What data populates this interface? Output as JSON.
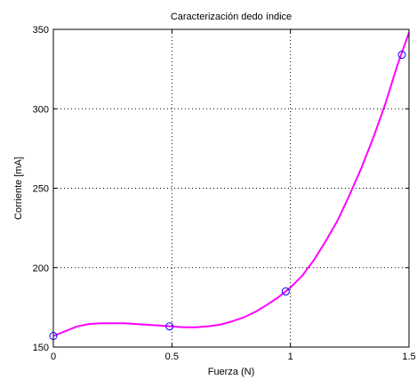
{
  "chart_data": {
    "type": "line",
    "title": "Caracterización dedo índice",
    "xlabel": "Fuerza (N)",
    "ylabel": "Corriente [mA]",
    "xlim": [
      0,
      1.5
    ],
    "ylim": [
      150,
      350
    ],
    "grid": true,
    "x_ticks": [
      "0",
      "0.5",
      "1",
      "1.5"
    ],
    "y_ticks": [
      "150",
      "200",
      "250",
      "300",
      "350"
    ],
    "colors": {
      "curve": "#ff00ff",
      "markers": "#0000ff"
    },
    "series": [
      {
        "style": "markers",
        "marker": "circle",
        "x": [
          0,
          0.49,
          0.98,
          1.47
        ],
        "y": [
          157,
          163,
          185,
          334
        ]
      },
      {
        "style": "line",
        "x": [
          0,
          0.05,
          0.1,
          0.15,
          0.2,
          0.25,
          0.3,
          0.35,
          0.4,
          0.45,
          0.5,
          0.55,
          0.6,
          0.65,
          0.7,
          0.75,
          0.8,
          0.85,
          0.9,
          0.95,
          1.0,
          1.05,
          1.1,
          1.15,
          1.2,
          1.25,
          1.3,
          1.35,
          1.4,
          1.45,
          1.5
        ],
        "y": [
          157,
          160,
          163,
          164.5,
          165,
          165,
          165,
          164.5,
          164,
          163.5,
          163,
          162.5,
          162.5,
          163,
          164,
          166,
          168.5,
          172,
          176.5,
          181.5,
          187.5,
          195,
          205,
          217,
          230,
          246,
          263,
          282,
          303,
          327,
          348
        ]
      }
    ]
  }
}
